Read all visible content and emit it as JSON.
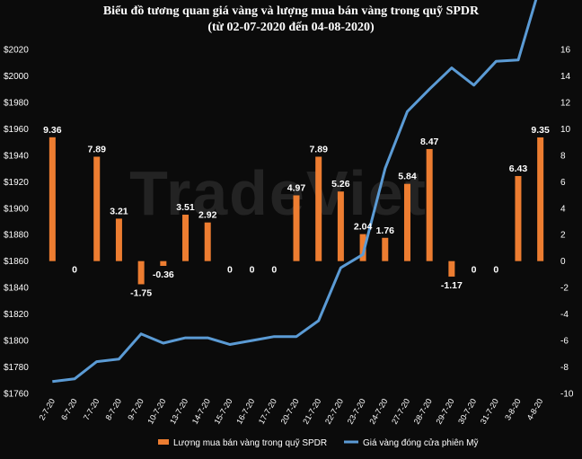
{
  "title": "Biểu đồ tương quan giá vàng và lượng mua bán vàng trong quỹ SPDR",
  "subtitle": "(từ 02-07-2020 đến 04-08-2020)",
  "watermark": "TradeViet",
  "colors": {
    "background": "#0b0b0b",
    "bar": "#ed7d31",
    "line": "#5b9bd5",
    "text": "#ffffff",
    "grid": "#3a3a3a"
  },
  "chart_data": {
    "type": "bar",
    "categories": [
      "2-7-20",
      "6-7-20",
      "7-7-20",
      "8-7-20",
      "9-7-20",
      "10-7-20",
      "13-7-20",
      "14-7-20",
      "15-7-20",
      "16-7-20",
      "17-7-20",
      "20-7-20",
      "21-7-20",
      "22-7-20",
      "23-7-20",
      "24-7-20",
      "27-7-20",
      "28-7-20",
      "29-7-20",
      "30-7-20",
      "31-7-20",
      "3-8-20",
      "4-8-20"
    ],
    "series": [
      {
        "name": "Lượng mua bán vàng trong quỹ SPDR",
        "type": "bar",
        "axis": "right",
        "values": [
          9.36,
          0,
          7.89,
          3.21,
          -1.75,
          -0.36,
          3.51,
          2.92,
          0,
          0,
          0,
          4.97,
          7.89,
          5.26,
          2.04,
          1.76,
          5.84,
          8.47,
          -1.17,
          0,
          0,
          6.43,
          9.35
        ],
        "labels": [
          "9.36",
          "0",
          "7.89",
          "3.21",
          "-1.75",
          "-0.36",
          "3.51",
          "2.92",
          "0",
          "0",
          "0",
          "4.97",
          "7.89",
          "5.26",
          "2.04",
          "1.76",
          "5.84",
          "8.47",
          "-1.17",
          "0",
          "0",
          "6.43",
          "9.35"
        ]
      },
      {
        "name": "Giá vàng đóng cửa phiên Mỹ",
        "type": "line",
        "axis": "left",
        "values": [
          1769,
          1771,
          1784,
          1786,
          1805,
          1798,
          1802,
          1802,
          1797,
          1800,
          1803,
          1803,
          1815,
          1855,
          1865,
          1930,
          1973,
          1990,
          2006,
          1993,
          2011,
          2012,
          2069
        ]
      }
    ],
    "left_axis": {
      "ticks": [
        "$1760",
        "$1780",
        "$1800",
        "$1820",
        "$1840",
        "$1860",
        "$1880",
        "$1900",
        "$1920",
        "$1940",
        "$1960",
        "$1980",
        "$2000",
        "$2020"
      ],
      "ylim": [
        1760,
        2020
      ]
    },
    "right_axis": {
      "ticks": [
        "-10",
        "-8",
        "-6",
        "-4",
        "-2",
        "0",
        "2",
        "4",
        "6",
        "8",
        "10",
        "12",
        "14",
        "16"
      ],
      "ylim": [
        -10,
        16
      ]
    },
    "legend_position": "bottom",
    "grid": false
  }
}
